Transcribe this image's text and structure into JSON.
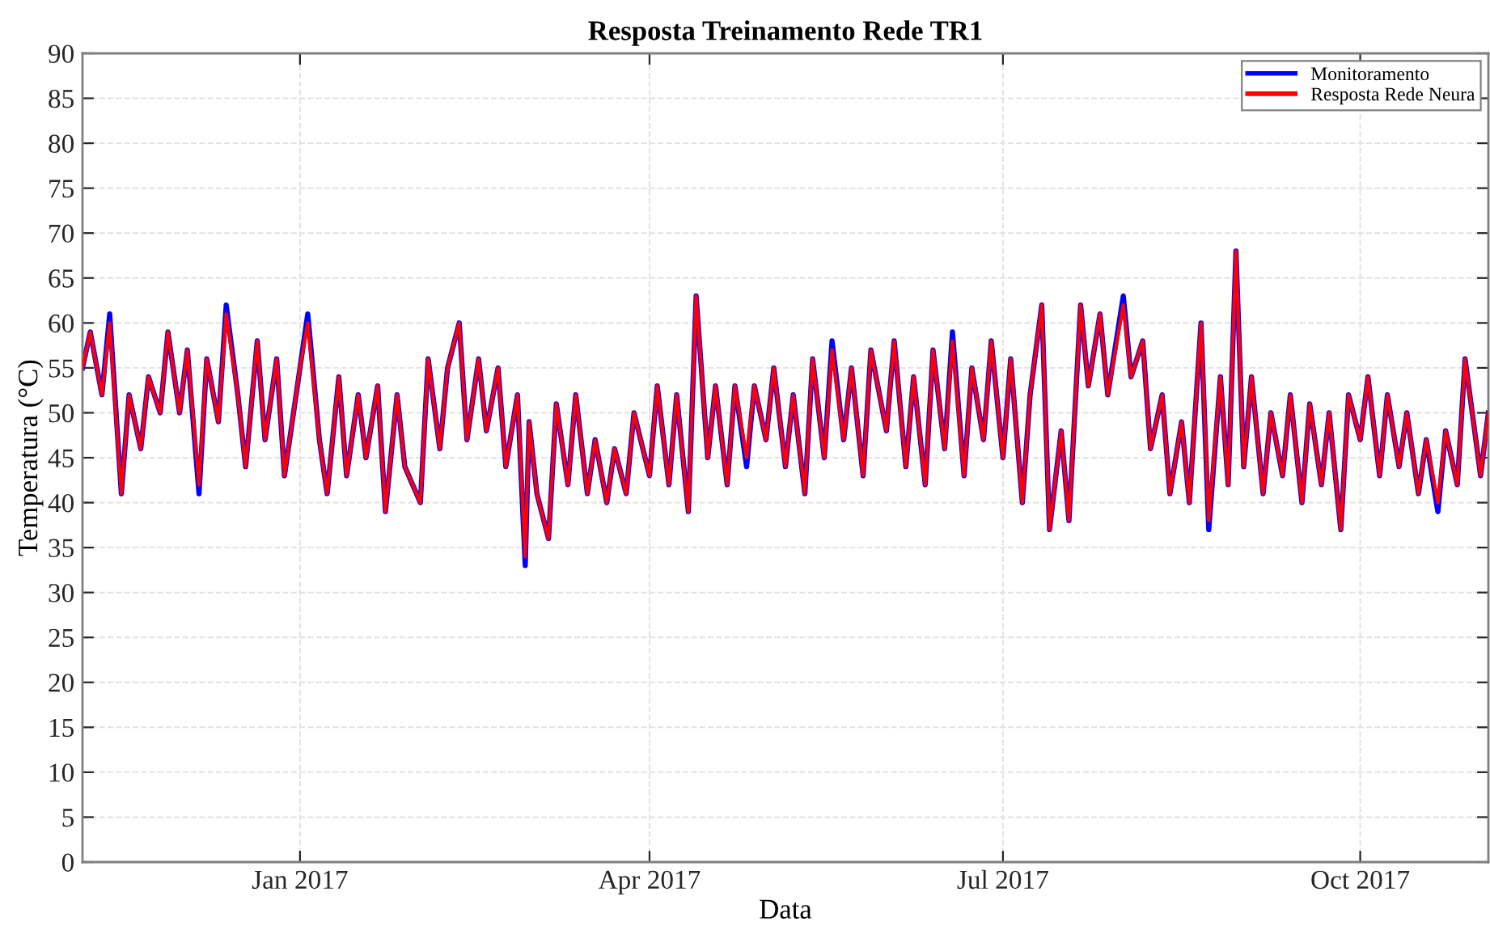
{
  "chart_data": {
    "type": "line",
    "title": "Resposta Treinamento Rede TR1",
    "xlabel": "Data",
    "ylabel": "Temperatura (°C)",
    "x": [
      "2016-11-06",
      "2016-11-08",
      "2016-11-11",
      "2016-11-13",
      "2016-11-16",
      "2016-11-18",
      "2016-11-21",
      "2016-11-23",
      "2016-11-26",
      "2016-11-28",
      "2016-12-01",
      "2016-12-03",
      "2016-12-06",
      "2016-12-08",
      "2016-12-11",
      "2016-12-13",
      "2016-12-16",
      "2016-12-18",
      "2016-12-21",
      "2016-12-23",
      "2016-12-26",
      "2016-12-28",
      "2017-01-01",
      "2017-01-03",
      "2017-01-06",
      "2017-01-08",
      "2017-01-11",
      "2017-01-13",
      "2017-01-16",
      "2017-01-18",
      "2017-01-21",
      "2017-01-23",
      "2017-01-26",
      "2017-01-28",
      "2017-02-01",
      "2017-02-03",
      "2017-02-06",
      "2017-02-08",
      "2017-02-11",
      "2017-02-13",
      "2017-02-16",
      "2017-02-18",
      "2017-02-21",
      "2017-02-23",
      "2017-02-26",
      "2017-02-28",
      "2017-03-01",
      "2017-03-03",
      "2017-03-06",
      "2017-03-08",
      "2017-03-11",
      "2017-03-13",
      "2017-03-16",
      "2017-03-18",
      "2017-03-21",
      "2017-03-23",
      "2017-03-26",
      "2017-03-28",
      "2017-04-01",
      "2017-04-03",
      "2017-04-06",
      "2017-04-08",
      "2017-04-11",
      "2017-04-13",
      "2017-04-16",
      "2017-04-18",
      "2017-04-21",
      "2017-04-23",
      "2017-04-26",
      "2017-04-28",
      "2017-05-01",
      "2017-05-03",
      "2017-05-06",
      "2017-05-08",
      "2017-05-11",
      "2017-05-13",
      "2017-05-16",
      "2017-05-18",
      "2017-05-21",
      "2017-05-23",
      "2017-05-26",
      "2017-05-28",
      "2017-06-01",
      "2017-06-03",
      "2017-06-06",
      "2017-06-08",
      "2017-06-11",
      "2017-06-13",
      "2017-06-16",
      "2017-06-18",
      "2017-06-21",
      "2017-06-23",
      "2017-06-26",
      "2017-06-28",
      "2017-07-01",
      "2017-07-03",
      "2017-07-06",
      "2017-07-08",
      "2017-07-11",
      "2017-07-13",
      "2017-07-16",
      "2017-07-18",
      "2017-07-21",
      "2017-07-23",
      "2017-07-26",
      "2017-07-28",
      "2017-08-01",
      "2017-08-03",
      "2017-08-06",
      "2017-08-08",
      "2017-08-11",
      "2017-08-13",
      "2017-08-16",
      "2017-08-18",
      "2017-08-21",
      "2017-08-23",
      "2017-08-26",
      "2017-08-28",
      "2017-08-30",
      "2017-09-01",
      "2017-09-03",
      "2017-09-06",
      "2017-09-08",
      "2017-09-11",
      "2017-09-13",
      "2017-09-16",
      "2017-09-18",
      "2017-09-21",
      "2017-09-23",
      "2017-09-26",
      "2017-09-28",
      "2017-10-01",
      "2017-10-03",
      "2017-10-06",
      "2017-10-08",
      "2017-10-11",
      "2017-10-13",
      "2017-10-16",
      "2017-10-18",
      "2017-10-21",
      "2017-10-23",
      "2017-10-26",
      "2017-10-28",
      "2017-11-01",
      "2017-11-03"
    ],
    "series": [
      {
        "name": "Monitoramento",
        "color": "#0000ff",
        "values": [
          55,
          59,
          52,
          61,
          41,
          52,
          46,
          54,
          50,
          59,
          50,
          57,
          41,
          56,
          49,
          62,
          52,
          44,
          58,
          47,
          56,
          43,
          55,
          61,
          47,
          41,
          54,
          43,
          52,
          45,
          53,
          39,
          52,
          44,
          40,
          56,
          46,
          55,
          60,
          47,
          56,
          48,
          55,
          44,
          52,
          33,
          49,
          41,
          36,
          51,
          42,
          52,
          41,
          47,
          40,
          46,
          41,
          50,
          43,
          53,
          42,
          52,
          39,
          63,
          45,
          53,
          42,
          53,
          44,
          53,
          47,
          55,
          44,
          52,
          41,
          56,
          45,
          58,
          47,
          55,
          43,
          57,
          48,
          58,
          44,
          54,
          42,
          57,
          46,
          59,
          43,
          55,
          47,
          58,
          45,
          56,
          40,
          52,
          62,
          37,
          48,
          38,
          62,
          53,
          61,
          52,
          63,
          54,
          58,
          46,
          52,
          41,
          49,
          40,
          60,
          37,
          54,
          42,
          68,
          44,
          54,
          41,
          50,
          43,
          52,
          40,
          51,
          42,
          50,
          37,
          52,
          47,
          54,
          43,
          52,
          44,
          50,
          41,
          47,
          39,
          48,
          42,
          56,
          43,
          50
        ]
      },
      {
        "name": "Resposta Rede Neura",
        "color": "#ff0000",
        "values": [
          55,
          59,
          52,
          60,
          41,
          52,
          46,
          54,
          50,
          59,
          50,
          57,
          42,
          56,
          49,
          61,
          52,
          44,
          58,
          47,
          56,
          43,
          55,
          60,
          47,
          41,
          54,
          43,
          52,
          45,
          53,
          39,
          52,
          44,
          40,
          56,
          46,
          55,
          60,
          47,
          56,
          48,
          55,
          44,
          52,
          34,
          49,
          41,
          36,
          51,
          42,
          52,
          41,
          47,
          40,
          46,
          41,
          50,
          43,
          53,
          42,
          52,
          39,
          63,
          45,
          53,
          42,
          53,
          45,
          53,
          47,
          55,
          44,
          52,
          41,
          56,
          45,
          57,
          47,
          55,
          43,
          57,
          48,
          58,
          44,
          54,
          42,
          57,
          46,
          58,
          43,
          55,
          47,
          58,
          45,
          56,
          40,
          52,
          62,
          37,
          48,
          38,
          62,
          53,
          61,
          52,
          62,
          54,
          58,
          46,
          52,
          41,
          49,
          40,
          60,
          38,
          54,
          42,
          68,
          44,
          54,
          41,
          50,
          43,
          52,
          40,
          51,
          42,
          50,
          37,
          52,
          47,
          54,
          43,
          52,
          44,
          50,
          41,
          47,
          40,
          48,
          42,
          56,
          43,
          50
        ]
      }
    ],
    "xlim": [
      "2016-11-06",
      "2017-11-03"
    ],
    "xticks": [
      {
        "value": "2017-01-01",
        "label": "Jan 2017"
      },
      {
        "value": "2017-04-01",
        "label": "Apr 2017"
      },
      {
        "value": "2017-07-01",
        "label": "Jul 2017"
      },
      {
        "value": "2017-10-01",
        "label": "Oct 2017"
      }
    ],
    "ylim": [
      0,
      90
    ],
    "yticks": [
      0,
      5,
      10,
      15,
      20,
      25,
      30,
      35,
      40,
      45,
      50,
      55,
      60,
      65,
      70,
      75,
      80,
      85,
      90
    ],
    "grid": true,
    "legend": "top right"
  }
}
